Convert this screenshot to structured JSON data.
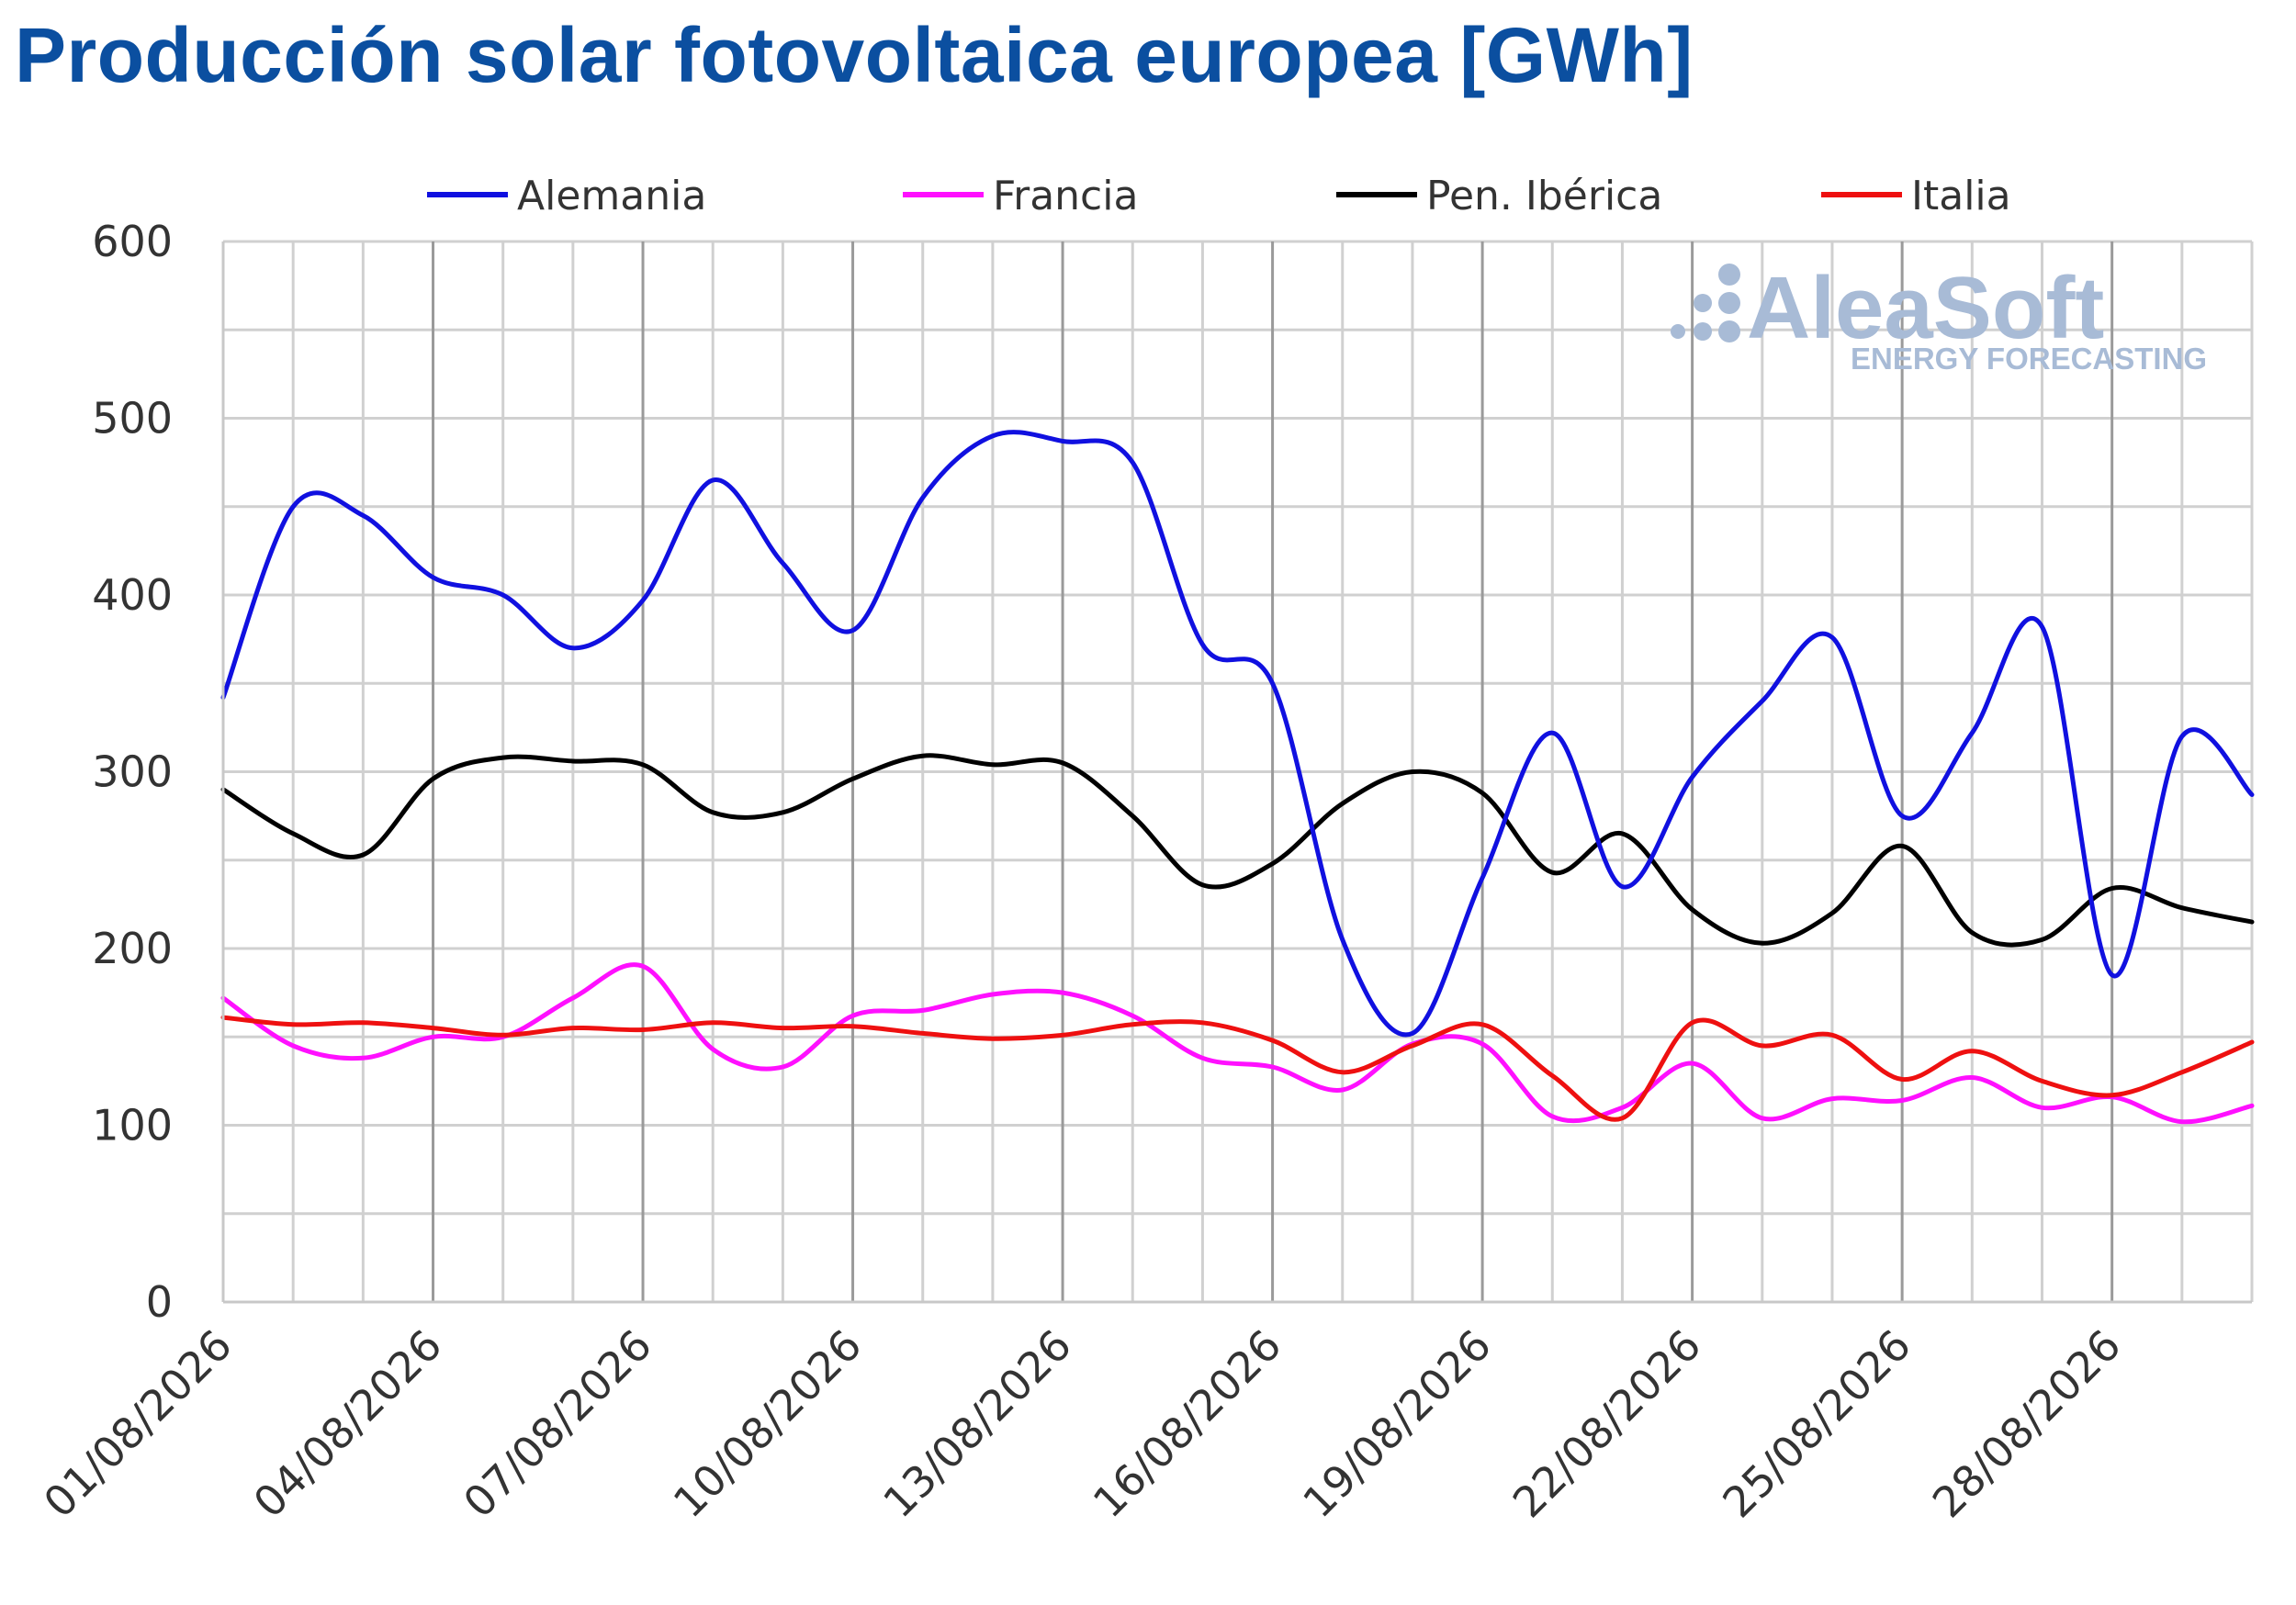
{
  "title": "Producción solar fotovoltaica europea [GWh]",
  "watermark": {
    "brand": "AleaSoft",
    "tagline": "ENERGY FORECASTING",
    "color": "#a8bbd6"
  },
  "chart_data": {
    "type": "line",
    "title": "Producción solar fotovoltaica europea [GWh]",
    "xlabel": "",
    "ylabel": "",
    "ylim": [
      0,
      600
    ],
    "yticks": [
      0,
      100,
      200,
      300,
      400,
      500,
      600
    ],
    "grid": true,
    "legend_position": "top",
    "x": [
      "01/08/2026",
      "02/08/2026",
      "03/08/2026",
      "04/08/2026",
      "05/08/2026",
      "06/08/2026",
      "07/08/2026",
      "08/08/2026",
      "09/08/2026",
      "10/08/2026",
      "11/08/2026",
      "12/08/2026",
      "13/08/2026",
      "14/08/2026",
      "15/08/2026",
      "16/08/2026",
      "17/08/2026",
      "18/08/2026",
      "19/08/2026",
      "20/08/2026",
      "21/08/2026",
      "22/08/2026",
      "23/08/2026",
      "24/08/2026",
      "25/08/2026",
      "26/08/2026",
      "27/08/2026",
      "28/08/2026",
      "29/08/2026",
      "30/08/2026"
    ],
    "xtick_labels": [
      "01/08/2026",
      "04/08/2026",
      "07/08/2026",
      "10/08/2026",
      "13/08/2026",
      "16/08/2026",
      "19/08/2026",
      "22/08/2026",
      "25/08/2026",
      "28/08/2026"
    ],
    "series": [
      {
        "name": "Alemania",
        "color": "#1010e0",
        "values": [
          342,
          450,
          445,
          410,
          400,
          370,
          397,
          465,
          418,
          380,
          455,
          490,
          487,
          475,
          372,
          350,
          205,
          152,
          240,
          322,
          235,
          297,
          340,
          376,
          275,
          322,
          382,
          185,
          320,
          287
        ]
      },
      {
        "name": "Francia",
        "color": "#ff10ff",
        "values": [
          172,
          145,
          138,
          150,
          150,
          172,
          190,
          143,
          133,
          162,
          165,
          174,
          175,
          162,
          138,
          133,
          120,
          146,
          146,
          105,
          110,
          135,
          104,
          115,
          114,
          127,
          110,
          116,
          102,
          111
        ]
      },
      {
        "name": "Pen. Ibérica",
        "color": "#000000",
        "values": [
          290,
          265,
          253,
          296,
          308,
          306,
          304,
          277,
          277,
          296,
          309,
          304,
          305,
          275,
          236,
          248,
          282,
          300,
          288,
          243,
          265,
          222,
          203,
          220,
          258,
          209,
          205,
          234,
          223,
          215
        ]
      },
      {
        "name": "Italia",
        "color": "#ee1010",
        "values": [
          161,
          157,
          158,
          155,
          151,
          155,
          154,
          158,
          155,
          156,
          152,
          149,
          151,
          157,
          158,
          148,
          130,
          145,
          157,
          128,
          104,
          158,
          145,
          151,
          126,
          142,
          125,
          117,
          130,
          147
        ]
      }
    ]
  }
}
